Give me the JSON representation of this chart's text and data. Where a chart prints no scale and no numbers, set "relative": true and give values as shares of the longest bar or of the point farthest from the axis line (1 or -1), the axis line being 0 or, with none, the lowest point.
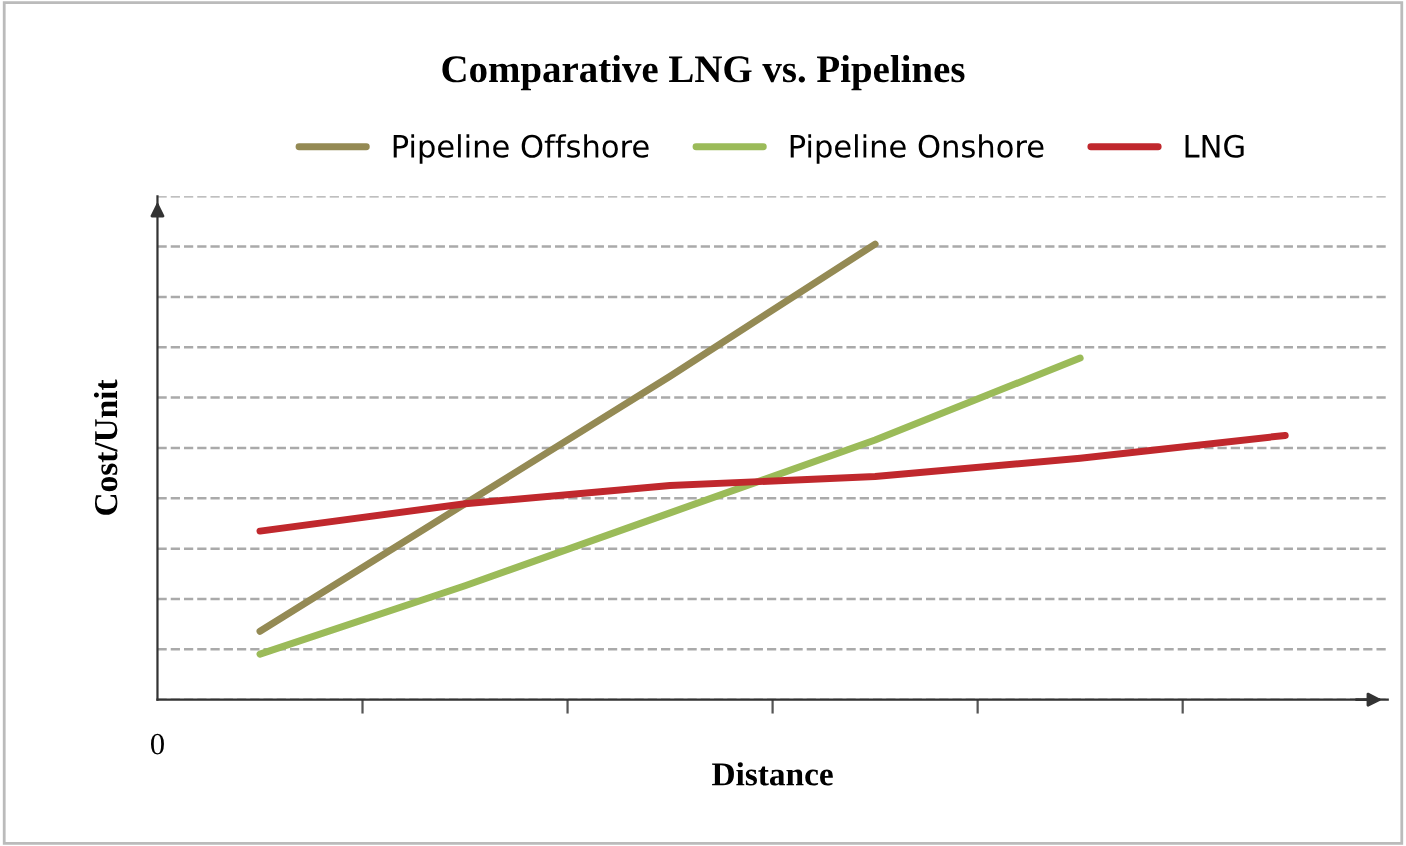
{
  "chart_data": {
    "type": "line",
    "title": "Comparative LNG vs. Pipelines",
    "xlabel": "Distance",
    "ylabel": "Cost/Unit",
    "relative": true,
    "categories": [
      null,
      null,
      null,
      null,
      null,
      null
    ],
    "series": [
      {
        "name": "Pipeline Offshore",
        "color": "#948a54",
        "values": [
          0.15,
          0.43,
          0.71,
          1.0,
          null,
          null
        ]
      },
      {
        "name": "Pipeline Onshore",
        "color": "#9bbb59",
        "values": [
          0.1,
          0.25,
          0.41,
          0.57,
          0.75,
          null
        ]
      },
      {
        "name": "LNG",
        "color": "#c0282d",
        "values": [
          0.37,
          0.43,
          0.47,
          0.49,
          0.53,
          0.58
        ]
      }
    ],
    "annotations": [
      "0"
    ],
    "grid": "y",
    "legend": "top",
    "marker": "none",
    "line_style": "solid"
  }
}
